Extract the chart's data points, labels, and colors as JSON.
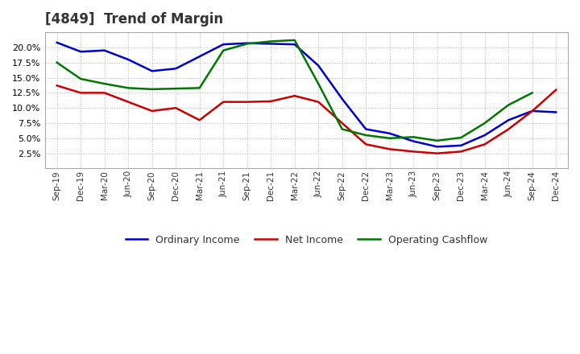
{
  "title": "[4849]  Trend of Margin",
  "x_labels": [
    "Sep-19",
    "Dec-19",
    "Mar-20",
    "Jun-20",
    "Sep-20",
    "Dec-20",
    "Mar-21",
    "Jun-21",
    "Sep-21",
    "Dec-21",
    "Mar-22",
    "Jun-22",
    "Sep-22",
    "Dec-22",
    "Mar-23",
    "Jun-23",
    "Sep-23",
    "Dec-23",
    "Mar-24",
    "Jun-24",
    "Sep-24",
    "Dec-24"
  ],
  "ordinary_income": [
    20.8,
    19.3,
    19.5,
    18.0,
    16.1,
    16.5,
    18.5,
    20.5,
    20.7,
    20.6,
    20.5,
    17.0,
    11.5,
    6.5,
    5.8,
    4.5,
    3.6,
    3.8,
    5.5,
    8.0,
    9.5,
    9.3
  ],
  "net_income": [
    13.7,
    12.5,
    12.5,
    11.0,
    9.5,
    10.0,
    8.0,
    11.0,
    11.0,
    11.1,
    12.0,
    11.0,
    7.5,
    4.0,
    3.2,
    2.8,
    2.5,
    2.8,
    4.0,
    6.5,
    9.5,
    13.0
  ],
  "operating_cashflow": [
    17.5,
    14.8,
    14.0,
    13.3,
    13.1,
    13.2,
    13.3,
    19.5,
    20.6,
    21.0,
    21.2,
    14.0,
    6.5,
    5.5,
    5.0,
    5.2,
    4.6,
    5.1,
    7.5,
    10.5,
    12.5,
    null
  ],
  "ylim": [
    0,
    22.5
  ],
  "yticks": [
    2.5,
    5.0,
    7.5,
    10.0,
    12.5,
    15.0,
    17.5,
    20.0
  ],
  "line_colors": {
    "ordinary_income": "#0000CC",
    "net_income": "#CC0000",
    "operating_cashflow": "#007700"
  },
  "legend_labels": [
    "Ordinary Income",
    "Net Income",
    "Operating Cashflow"
  ],
  "background_color": "#FFFFFF",
  "plot_bg_color": "#FFFFFF",
  "grid_color": "#BBBBBB",
  "title_color": "#333333"
}
